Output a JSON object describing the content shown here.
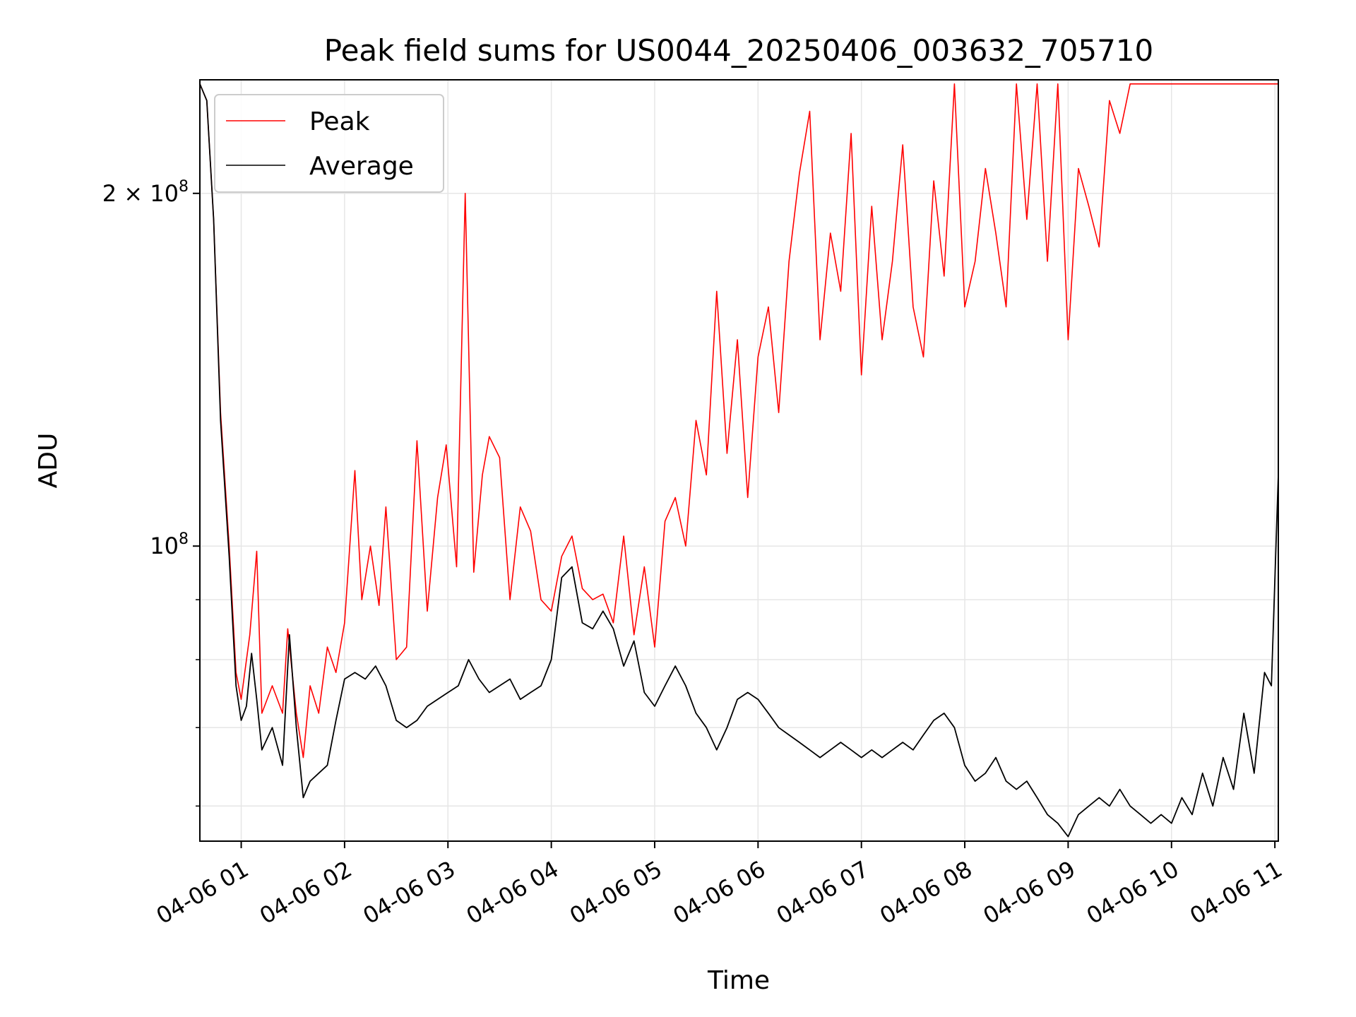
{
  "chart_data": {
    "type": "line",
    "title": "Peak field sums for US0044_20250406_003632_705710",
    "xlabel": "Time",
    "ylabel": "ADU",
    "y_scale": "log",
    "ylim": [
      56000000,
      250000000
    ],
    "xlim": [
      "2025-04-06 00:36",
      "2025-04-06 11:02"
    ],
    "grid": true,
    "legend_position": "top-left",
    "x_ticks": [
      {
        "t": "2025-04-06 01:00",
        "label": "04-06 01"
      },
      {
        "t": "2025-04-06 02:00",
        "label": "04-06 02"
      },
      {
        "t": "2025-04-06 03:00",
        "label": "04-06 03"
      },
      {
        "t": "2025-04-06 04:00",
        "label": "04-06 04"
      },
      {
        "t": "2025-04-06 05:00",
        "label": "04-06 05"
      },
      {
        "t": "2025-04-06 06:00",
        "label": "04-06 06"
      },
      {
        "t": "2025-04-06 07:00",
        "label": "04-06 07"
      },
      {
        "t": "2025-04-06 08:00",
        "label": "04-06 08"
      },
      {
        "t": "2025-04-06 09:00",
        "label": "04-06 09"
      },
      {
        "t": "2025-04-06 10:00",
        "label": "04-06 10"
      },
      {
        "t": "2025-04-06 11:00",
        "label": "04-06 11"
      }
    ],
    "y_ticks_major": [
      {
        "value": 100000000,
        "base": "10",
        "exp": "8",
        "mult": ""
      },
      {
        "value": 200000000,
        "base": "10",
        "exp": "8",
        "mult": "2 × "
      }
    ],
    "y_ticks_minor": [
      60000000,
      70000000,
      80000000,
      90000000
    ],
    "series": [
      {
        "name": "Peak",
        "color": "#ff0000",
        "points": [
          [
            "2025-04-06 00:36",
            248000000
          ],
          [
            "2025-04-06 00:40",
            240000000
          ],
          [
            "2025-04-06 00:44",
            190000000
          ],
          [
            "2025-04-06 00:48",
            130000000
          ],
          [
            "2025-04-06 00:53",
            100000000
          ],
          [
            "2025-04-06 00:57",
            78000000
          ],
          [
            "2025-04-06 01:00",
            74000000
          ],
          [
            "2025-04-06 01:05",
            84000000
          ],
          [
            "2025-04-06 01:09",
            99000000
          ],
          [
            "2025-04-06 01:12",
            72000000
          ],
          [
            "2025-04-06 01:18",
            76000000
          ],
          [
            "2025-04-06 01:24",
            72000000
          ],
          [
            "2025-04-06 01:27",
            85000000
          ],
          [
            "2025-04-06 01:32",
            72000000
          ],
          [
            "2025-04-06 01:36",
            66000000
          ],
          [
            "2025-04-06 01:40",
            76000000
          ],
          [
            "2025-04-06 01:45",
            72000000
          ],
          [
            "2025-04-06 01:50",
            82000000
          ],
          [
            "2025-04-06 01:55",
            78000000
          ],
          [
            "2025-04-06 02:00",
            86000000
          ],
          [
            "2025-04-06 02:06",
            116000000
          ],
          [
            "2025-04-06 02:10",
            90000000
          ],
          [
            "2025-04-06 02:15",
            100000000
          ],
          [
            "2025-04-06 02:20",
            89000000
          ],
          [
            "2025-04-06 02:24",
            108000000
          ],
          [
            "2025-04-06 02:30",
            80000000
          ],
          [
            "2025-04-06 02:36",
            82000000
          ],
          [
            "2025-04-06 02:42",
            123000000
          ],
          [
            "2025-04-06 02:48",
            88000000
          ],
          [
            "2025-04-06 02:54",
            110000000
          ],
          [
            "2025-04-06 02:59",
            122000000
          ],
          [
            "2025-04-06 03:05",
            96000000
          ],
          [
            "2025-04-06 03:10",
            200000000
          ],
          [
            "2025-04-06 03:15",
            95000000
          ],
          [
            "2025-04-06 03:20",
            115000000
          ],
          [
            "2025-04-06 03:24",
            124000000
          ],
          [
            "2025-04-06 03:30",
            119000000
          ],
          [
            "2025-04-06 03:36",
            90000000
          ],
          [
            "2025-04-06 03:42",
            108000000
          ],
          [
            "2025-04-06 03:48",
            103000000
          ],
          [
            "2025-04-06 03:54",
            90000000
          ],
          [
            "2025-04-06 04:00",
            88000000
          ],
          [
            "2025-04-06 04:06",
            98000000
          ],
          [
            "2025-04-06 04:12",
            102000000
          ],
          [
            "2025-04-06 04:18",
            92000000
          ],
          [
            "2025-04-06 04:24",
            90000000
          ],
          [
            "2025-04-06 04:30",
            91000000
          ],
          [
            "2025-04-06 04:36",
            86000000
          ],
          [
            "2025-04-06 04:42",
            102000000
          ],
          [
            "2025-04-06 04:48",
            84000000
          ],
          [
            "2025-04-06 04:54",
            96000000
          ],
          [
            "2025-04-06 05:00",
            82000000
          ],
          [
            "2025-04-06 05:06",
            105000000
          ],
          [
            "2025-04-06 05:12",
            110000000
          ],
          [
            "2025-04-06 05:18",
            100000000
          ],
          [
            "2025-04-06 05:24",
            128000000
          ],
          [
            "2025-04-06 05:30",
            115000000
          ],
          [
            "2025-04-06 05:36",
            165000000
          ],
          [
            "2025-04-06 05:42",
            120000000
          ],
          [
            "2025-04-06 05:48",
            150000000
          ],
          [
            "2025-04-06 05:54",
            110000000
          ],
          [
            "2025-04-06 06:00",
            145000000
          ],
          [
            "2025-04-06 06:06",
            160000000
          ],
          [
            "2025-04-06 06:12",
            130000000
          ],
          [
            "2025-04-06 06:18",
            175000000
          ],
          [
            "2025-04-06 06:24",
            208000000
          ],
          [
            "2025-04-06 06:30",
            235000000
          ],
          [
            "2025-04-06 06:36",
            150000000
          ],
          [
            "2025-04-06 06:42",
            185000000
          ],
          [
            "2025-04-06 06:48",
            165000000
          ],
          [
            "2025-04-06 06:54",
            225000000
          ],
          [
            "2025-04-06 07:00",
            140000000
          ],
          [
            "2025-04-06 07:06",
            195000000
          ],
          [
            "2025-04-06 07:12",
            150000000
          ],
          [
            "2025-04-06 07:18",
            175000000
          ],
          [
            "2025-04-06 07:24",
            220000000
          ],
          [
            "2025-04-06 07:30",
            160000000
          ],
          [
            "2025-04-06 07:36",
            145000000
          ],
          [
            "2025-04-06 07:42",
            205000000
          ],
          [
            "2025-04-06 07:48",
            170000000
          ],
          [
            "2025-04-06 07:54",
            248000000
          ],
          [
            "2025-04-06 08:00",
            160000000
          ],
          [
            "2025-04-06 08:06",
            175000000
          ],
          [
            "2025-04-06 08:12",
            210000000
          ],
          [
            "2025-04-06 08:18",
            185000000
          ],
          [
            "2025-04-06 08:24",
            160000000
          ],
          [
            "2025-04-06 08:30",
            248000000
          ],
          [
            "2025-04-06 08:36",
            190000000
          ],
          [
            "2025-04-06 08:42",
            248000000
          ],
          [
            "2025-04-06 08:48",
            175000000
          ],
          [
            "2025-04-06 08:54",
            248000000
          ],
          [
            "2025-04-06 09:00",
            150000000
          ],
          [
            "2025-04-06 09:06",
            210000000
          ],
          [
            "2025-04-06 09:12",
            195000000
          ],
          [
            "2025-04-06 09:18",
            180000000
          ],
          [
            "2025-04-06 09:24",
            240000000
          ],
          [
            "2025-04-06 09:30",
            225000000
          ],
          [
            "2025-04-06 09:36",
            248000000
          ],
          [
            "2025-04-06 09:42",
            248000000
          ],
          [
            "2025-04-06 09:48",
            248000000
          ],
          [
            "2025-04-06 09:54",
            248000000
          ],
          [
            "2025-04-06 10:00",
            248000000
          ],
          [
            "2025-04-06 10:10",
            248000000
          ],
          [
            "2025-04-06 10:20",
            248000000
          ],
          [
            "2025-04-06 10:30",
            248000000
          ],
          [
            "2025-04-06 10:40",
            248000000
          ],
          [
            "2025-04-06 10:50",
            248000000
          ],
          [
            "2025-04-06 11:02",
            248000000
          ]
        ]
      },
      {
        "name": "Average",
        "color": "#000000",
        "points": [
          [
            "2025-04-06 00:36",
            248000000
          ],
          [
            "2025-04-06 00:40",
            240000000
          ],
          [
            "2025-04-06 00:44",
            190000000
          ],
          [
            "2025-04-06 00:48",
            128000000
          ],
          [
            "2025-04-06 00:53",
            98000000
          ],
          [
            "2025-04-06 00:57",
            76000000
          ],
          [
            "2025-04-06 01:00",
            71000000
          ],
          [
            "2025-04-06 01:03",
            73000000
          ],
          [
            "2025-04-06 01:06",
            81000000
          ],
          [
            "2025-04-06 01:09",
            74000000
          ],
          [
            "2025-04-06 01:12",
            67000000
          ],
          [
            "2025-04-06 01:18",
            70000000
          ],
          [
            "2025-04-06 01:24",
            65000000
          ],
          [
            "2025-04-06 01:28",
            84000000
          ],
          [
            "2025-04-06 01:32",
            70000000
          ],
          [
            "2025-04-06 01:36",
            61000000
          ],
          [
            "2025-04-06 01:40",
            63000000
          ],
          [
            "2025-04-06 01:45",
            64000000
          ],
          [
            "2025-04-06 01:50",
            65000000
          ],
          [
            "2025-04-06 01:55",
            71000000
          ],
          [
            "2025-04-06 02:00",
            77000000
          ],
          [
            "2025-04-06 02:06",
            78000000
          ],
          [
            "2025-04-06 02:12",
            77000000
          ],
          [
            "2025-04-06 02:18",
            79000000
          ],
          [
            "2025-04-06 02:24",
            76000000
          ],
          [
            "2025-04-06 02:30",
            71000000
          ],
          [
            "2025-04-06 02:36",
            70000000
          ],
          [
            "2025-04-06 02:42",
            71000000
          ],
          [
            "2025-04-06 02:48",
            73000000
          ],
          [
            "2025-04-06 02:54",
            74000000
          ],
          [
            "2025-04-06 03:00",
            75000000
          ],
          [
            "2025-04-06 03:06",
            76000000
          ],
          [
            "2025-04-06 03:12",
            80000000
          ],
          [
            "2025-04-06 03:18",
            77000000
          ],
          [
            "2025-04-06 03:24",
            75000000
          ],
          [
            "2025-04-06 03:30",
            76000000
          ],
          [
            "2025-04-06 03:36",
            77000000
          ],
          [
            "2025-04-06 03:42",
            74000000
          ],
          [
            "2025-04-06 03:48",
            75000000
          ],
          [
            "2025-04-06 03:54",
            76000000
          ],
          [
            "2025-04-06 04:00",
            80000000
          ],
          [
            "2025-04-06 04:06",
            94000000
          ],
          [
            "2025-04-06 04:12",
            96000000
          ],
          [
            "2025-04-06 04:18",
            86000000
          ],
          [
            "2025-04-06 04:24",
            85000000
          ],
          [
            "2025-04-06 04:30",
            88000000
          ],
          [
            "2025-04-06 04:36",
            85000000
          ],
          [
            "2025-04-06 04:42",
            79000000
          ],
          [
            "2025-04-06 04:48",
            83000000
          ],
          [
            "2025-04-06 04:54",
            75000000
          ],
          [
            "2025-04-06 05:00",
            73000000
          ],
          [
            "2025-04-06 05:06",
            76000000
          ],
          [
            "2025-04-06 05:12",
            79000000
          ],
          [
            "2025-04-06 05:18",
            76000000
          ],
          [
            "2025-04-06 05:24",
            72000000
          ],
          [
            "2025-04-06 05:30",
            70000000
          ],
          [
            "2025-04-06 05:36",
            67000000
          ],
          [
            "2025-04-06 05:42",
            70000000
          ],
          [
            "2025-04-06 05:48",
            74000000
          ],
          [
            "2025-04-06 05:54",
            75000000
          ],
          [
            "2025-04-06 06:00",
            74000000
          ],
          [
            "2025-04-06 06:06",
            72000000
          ],
          [
            "2025-04-06 06:12",
            70000000
          ],
          [
            "2025-04-06 06:18",
            69000000
          ],
          [
            "2025-04-06 06:24",
            68000000
          ],
          [
            "2025-04-06 06:30",
            67000000
          ],
          [
            "2025-04-06 06:36",
            66000000
          ],
          [
            "2025-04-06 06:42",
            67000000
          ],
          [
            "2025-04-06 06:48",
            68000000
          ],
          [
            "2025-04-06 06:54",
            67000000
          ],
          [
            "2025-04-06 07:00",
            66000000
          ],
          [
            "2025-04-06 07:06",
            67000000
          ],
          [
            "2025-04-06 07:12",
            66000000
          ],
          [
            "2025-04-06 07:18",
            67000000
          ],
          [
            "2025-04-06 07:24",
            68000000
          ],
          [
            "2025-04-06 07:30",
            67000000
          ],
          [
            "2025-04-06 07:36",
            69000000
          ],
          [
            "2025-04-06 07:42",
            71000000
          ],
          [
            "2025-04-06 07:48",
            72000000
          ],
          [
            "2025-04-06 07:54",
            70000000
          ],
          [
            "2025-04-06 08:00",
            65000000
          ],
          [
            "2025-04-06 08:06",
            63000000
          ],
          [
            "2025-04-06 08:12",
            64000000
          ],
          [
            "2025-04-06 08:18",
            66000000
          ],
          [
            "2025-04-06 08:24",
            63000000
          ],
          [
            "2025-04-06 08:30",
            62000000
          ],
          [
            "2025-04-06 08:36",
            63000000
          ],
          [
            "2025-04-06 08:42",
            61000000
          ],
          [
            "2025-04-06 08:48",
            59000000
          ],
          [
            "2025-04-06 08:54",
            58000000
          ],
          [
            "2025-04-06 09:00",
            56500000
          ],
          [
            "2025-04-06 09:06",
            59000000
          ],
          [
            "2025-04-06 09:12",
            60000000
          ],
          [
            "2025-04-06 09:18",
            61000000
          ],
          [
            "2025-04-06 09:24",
            60000000
          ],
          [
            "2025-04-06 09:30",
            62000000
          ],
          [
            "2025-04-06 09:36",
            60000000
          ],
          [
            "2025-04-06 09:42",
            59000000
          ],
          [
            "2025-04-06 09:48",
            58000000
          ],
          [
            "2025-04-06 09:54",
            59000000
          ],
          [
            "2025-04-06 10:00",
            58000000
          ],
          [
            "2025-04-06 10:06",
            61000000
          ],
          [
            "2025-04-06 10:12",
            59000000
          ],
          [
            "2025-04-06 10:18",
            64000000
          ],
          [
            "2025-04-06 10:24",
            60000000
          ],
          [
            "2025-04-06 10:30",
            66000000
          ],
          [
            "2025-04-06 10:36",
            62000000
          ],
          [
            "2025-04-06 10:42",
            72000000
          ],
          [
            "2025-04-06 10:48",
            64000000
          ],
          [
            "2025-04-06 10:54",
            78000000
          ],
          [
            "2025-04-06 10:58",
            76000000
          ],
          [
            "2025-04-06 11:02",
            115000000
          ]
        ]
      }
    ]
  }
}
